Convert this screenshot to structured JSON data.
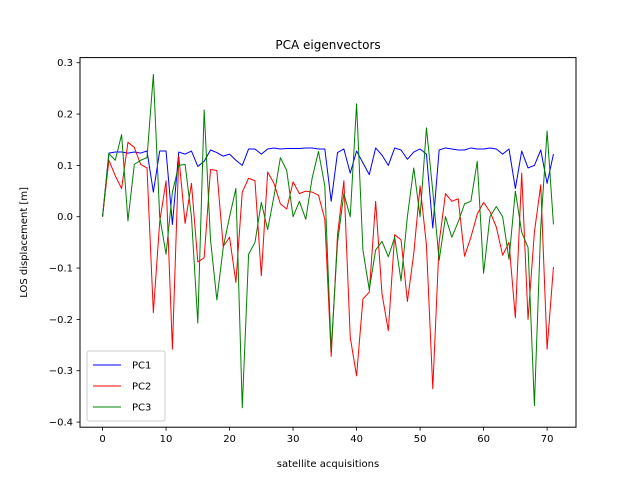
{
  "chart_data": {
    "type": "line",
    "title": "PCA eigenvectors",
    "xlabel": "satellite acquisitions",
    "ylabel": "LOS displacement [m]",
    "xlim": [
      -3.55,
      74.55
    ],
    "ylim": [
      -0.41,
      0.31
    ],
    "x_ticks": [
      0,
      10,
      20,
      30,
      40,
      50,
      60,
      70
    ],
    "y_ticks": [
      -0.4,
      -0.3,
      -0.2,
      -0.1,
      0.0,
      0.1,
      0.2,
      0.3
    ],
    "x_tick_labels": [
      "0",
      "10",
      "20",
      "30",
      "40",
      "50",
      "60",
      "70"
    ],
    "y_tick_labels": [
      "−0.4",
      "−0.3",
      "−0.2",
      "−0.1",
      "0.0",
      "0.1",
      "0.2",
      "0.3"
    ],
    "grid": false,
    "legend": "lower-left",
    "x": [
      0,
      1,
      2,
      3,
      4,
      5,
      6,
      7,
      8,
      9,
      10,
      11,
      12,
      13,
      14,
      15,
      16,
      17,
      18,
      19,
      20,
      21,
      22,
      23,
      24,
      25,
      26,
      27,
      28,
      29,
      30,
      31,
      32,
      33,
      34,
      35,
      36,
      37,
      38,
      39,
      40,
      41,
      42,
      43,
      44,
      45,
      46,
      47,
      48,
      49,
      50,
      51,
      52,
      53,
      54,
      55,
      56,
      57,
      58,
      59,
      60,
      61,
      62,
      63,
      64,
      65,
      66,
      67,
      68,
      69,
      70,
      71
    ],
    "series": [
      {
        "name": "PC1",
        "color": "#0000ff",
        "values": [
          0.0,
          0.124,
          0.126,
          0.126,
          0.124,
          0.126,
          0.124,
          0.128,
          0.048,
          0.128,
          0.128,
          -0.015,
          0.126,
          0.122,
          0.128,
          0.098,
          0.108,
          0.13,
          0.125,
          0.118,
          0.122,
          0.11,
          0.1,
          0.132,
          0.132,
          0.122,
          0.132,
          0.134,
          0.132,
          0.133,
          0.133,
          0.133,
          0.134,
          0.134,
          0.132,
          0.132,
          0.03,
          0.125,
          0.132,
          0.085,
          0.128,
          0.105,
          0.082,
          0.134,
          0.12,
          0.1,
          0.134,
          0.13,
          0.112,
          0.126,
          0.132,
          0.122,
          -0.022,
          0.13,
          0.134,
          0.132,
          0.13,
          0.13,
          0.134,
          0.132,
          0.132,
          0.134,
          0.132,
          0.122,
          0.132,
          0.055,
          0.128,
          0.095,
          0.1,
          0.13,
          0.065,
          0.122
        ]
      },
      {
        "name": "PC2",
        "color": "#ff0000",
        "values": [
          0.0,
          0.11,
          0.08,
          0.055,
          0.145,
          0.135,
          0.102,
          0.095,
          -0.187,
          -0.01,
          0.07,
          -0.258,
          0.118,
          -0.013,
          0.065,
          -0.088,
          -0.08,
          0.092,
          0.09,
          -0.058,
          -0.04,
          -0.128,
          0.048,
          0.075,
          0.07,
          -0.115,
          0.087,
          0.065,
          0.025,
          0.015,
          0.068,
          0.045,
          0.05,
          0.048,
          0.042,
          -0.005,
          -0.272,
          -0.035,
          0.07,
          -0.235,
          -0.31,
          -0.16,
          -0.147,
          0.03,
          -0.15,
          -0.222,
          -0.035,
          -0.045,
          -0.165,
          -0.072,
          0.06,
          -0.055,
          -0.335,
          -0.05,
          0.045,
          0.03,
          0.035,
          -0.077,
          -0.04,
          0.005,
          0.028,
          0.01,
          -0.02,
          -0.075,
          -0.05,
          -0.197,
          0.085,
          -0.2,
          -0.03,
          0.062,
          -0.258,
          -0.098
        ]
      },
      {
        "name": "PC3",
        "color": "#008000",
        "values": [
          0.0,
          0.123,
          0.11,
          0.16,
          -0.008,
          0.102,
          0.11,
          0.115,
          0.277,
          0.0,
          -0.073,
          0.048,
          0.1,
          0.102,
          0.0,
          -0.207,
          0.208,
          -0.045,
          -0.162,
          -0.06,
          0.0,
          0.055,
          -0.372,
          -0.073,
          -0.05,
          0.028,
          -0.025,
          0.04,
          0.115,
          0.09,
          0.0,
          0.03,
          -0.005,
          0.075,
          0.127,
          0.06,
          -0.26,
          -0.05,
          0.045,
          0.0,
          0.22,
          -0.065,
          -0.142,
          -0.065,
          -0.048,
          -0.078,
          -0.04,
          -0.125,
          0.0,
          0.095,
          0.0,
          0.173,
          0.05,
          -0.085,
          0.0,
          -0.04,
          -0.01,
          0.025,
          0.03,
          0.108,
          -0.11,
          0.0,
          0.02,
          0.0,
          -0.083,
          0.05,
          -0.03,
          -0.06,
          -0.368,
          -0.02,
          0.167,
          -0.015
        ]
      }
    ]
  }
}
